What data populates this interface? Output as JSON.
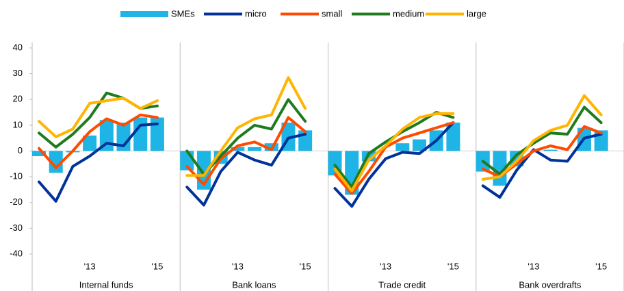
{
  "chart_data": [
    {
      "type": "combo",
      "xlabel": "Internal funds",
      "categories": [
        null,
        null,
        null,
        "'13",
        null,
        null,
        null,
        "'15"
      ],
      "ylim": [
        -40,
        40
      ],
      "yticks": [
        -40,
        -30,
        -20,
        -10,
        0,
        10,
        20,
        30,
        40
      ],
      "series": [
        {
          "name": "SMEs",
          "type": "bar",
          "color": "#1fb4e6",
          "values": [
            -2,
            -8.5,
            -0.5,
            6,
            12,
            11,
            13,
            13
          ]
        },
        {
          "name": "micro",
          "type": "line",
          "color": "#003299",
          "values": [
            -12,
            -19.5,
            -6,
            -2,
            3,
            2,
            10,
            10.5
          ]
        },
        {
          "name": "small",
          "type": "line",
          "color": "#ff4b00",
          "values": [
            1,
            -6.5,
            0,
            7.5,
            12.5,
            10,
            14,
            13
          ]
        },
        {
          "name": "medium",
          "type": "line",
          "color": "#1e7b1e",
          "values": [
            7,
            1.5,
            6.5,
            13,
            22.5,
            20.5,
            16.5,
            17.5
          ]
        },
        {
          "name": "large",
          "type": "line",
          "color": "#ffb400",
          "values": [
            11.5,
            5.5,
            8.5,
            18.5,
            19.5,
            20.5,
            16.5,
            19.5
          ]
        }
      ]
    },
    {
      "type": "combo",
      "xlabel": "Bank loans",
      "categories": [
        null,
        null,
        null,
        "'13",
        null,
        null,
        null,
        "'15"
      ],
      "ylim": [
        -40,
        40
      ],
      "series": [
        {
          "type": "bar",
          "color": "#1fb4e6",
          "values": [
            -7.5,
            -15,
            -5,
            1.5,
            1.5,
            3,
            11,
            8
          ]
        },
        {
          "type": "line",
          "color": "#003299",
          "values": [
            -14,
            -21,
            -8,
            -0.5,
            -3.5,
            -5.5,
            5,
            6.5
          ]
        },
        {
          "type": "line",
          "color": "#ff4b00",
          "values": [
            -6,
            -13,
            -3,
            2,
            3.5,
            0.5,
            13,
            7.5
          ]
        },
        {
          "type": "line",
          "color": "#1e7b1e",
          "values": [
            0,
            -9,
            -2,
            5,
            10,
            8.5,
            20,
            11.5
          ]
        },
        {
          "type": "line",
          "color": "#ffb400",
          "values": [
            -9.5,
            -9.5,
            0,
            9,
            12.5,
            14,
            28.5,
            16.5
          ]
        }
      ]
    },
    {
      "type": "combo",
      "xlabel": "Trade credit",
      "categories": [
        null,
        null,
        null,
        "'13",
        null,
        null,
        null,
        "'15"
      ],
      "ylim": [
        -40,
        40
      ],
      "series": [
        {
          "type": "bar",
          "color": "#1fb4e6",
          "values": [
            -9.5,
            -17,
            -4,
            0,
            3,
            4.5,
            8,
            11
          ]
        },
        {
          "type": "line",
          "color": "#003299",
          "values": [
            -14.5,
            -21.5,
            -11,
            -3,
            -0.5,
            -1,
            4,
            11
          ]
        },
        {
          "type": "line",
          "color": "#ff4b00",
          "values": [
            -9,
            -16.5,
            -8,
            1.5,
            5,
            7,
            9,
            11
          ]
        },
        {
          "type": "line",
          "color": "#1e7b1e",
          "values": [
            -5.5,
            -14,
            -1,
            3.5,
            7.5,
            11,
            15,
            13
          ]
        },
        {
          "type": "line",
          "color": "#ffb400",
          "values": [
            -7,
            -15.5,
            -3.5,
            2,
            8.5,
            13,
            14.5,
            14.5
          ]
        }
      ]
    },
    {
      "type": "combo",
      "xlabel": "Bank overdrafts",
      "categories": [
        null,
        null,
        null,
        "'13",
        null,
        null,
        null,
        "'15"
      ],
      "ylim": [
        -40,
        40
      ],
      "series": [
        {
          "type": "bar",
          "color": "#1fb4e6",
          "values": [
            -8,
            -13.5,
            -6,
            0,
            0.5,
            0,
            9,
            8
          ]
        },
        {
          "type": "line",
          "color": "#003299",
          "values": [
            -13.5,
            -18,
            -7.5,
            0.5,
            -3.5,
            -4,
            5,
            6.5
          ]
        },
        {
          "type": "line",
          "color": "#ff4b00",
          "values": [
            -7,
            -10,
            -5,
            0,
            2,
            0.5,
            9.5,
            7
          ]
        },
        {
          "type": "line",
          "color": "#1e7b1e",
          "values": [
            -4,
            -9,
            -1.5,
            3,
            7,
            6.5,
            17,
            11
          ]
        },
        {
          "type": "line",
          "color": "#ffb400",
          "values": [
            -11,
            -10,
            -4,
            4,
            8,
            10,
            21.5,
            14
          ]
        }
      ]
    }
  ]
}
